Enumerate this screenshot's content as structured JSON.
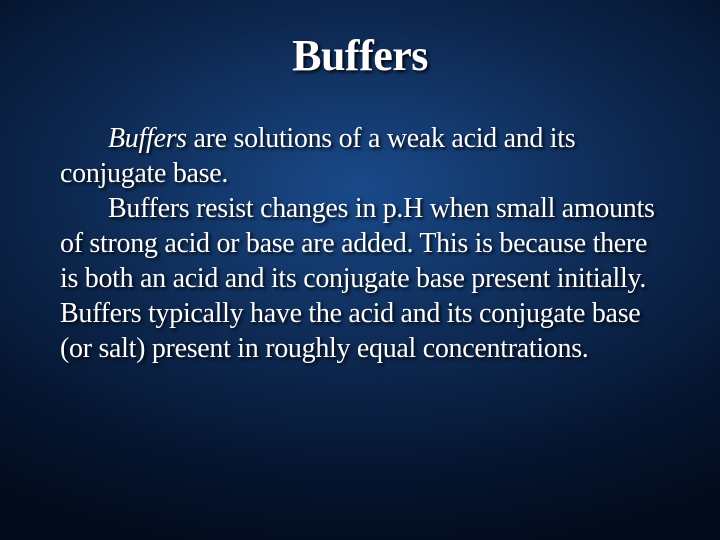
{
  "slide": {
    "title": "Buffers",
    "p1_lead": "Buffers",
    "p1_rest": " are solutions of a weak acid and its conjugate base.",
    "p2": "Buffers resist changes in p.H when small amounts of strong acid or base are added.  This is because there is both an acid and its conjugate base present initially.  Buffers typically have the acid and its conjugate base (or salt) present in roughly equal concentrations.",
    "background_gradient_inner": "#1a4a8a",
    "background_gradient_mid": "#0d2850",
    "background_gradient_outer": "#020a1a",
    "text_color": "#ffffff",
    "title_fontsize": 44,
    "body_fontsize": 28,
    "font_family": "Times New Roman"
  }
}
